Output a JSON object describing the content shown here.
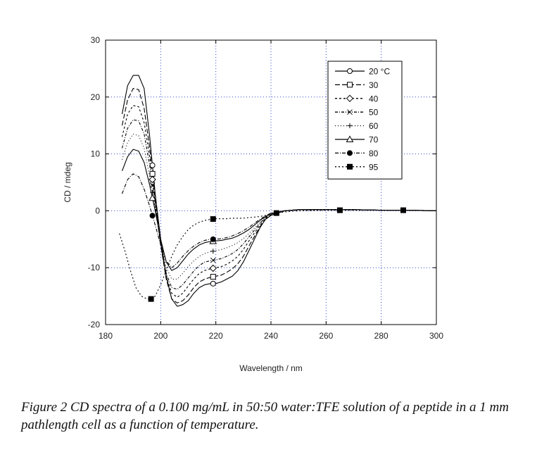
{
  "caption": "Figure 2 CD spectra of a 0.100 mg/mL in 50:50 water:TFE solution of a peptide in a 1 mm pathlength cell as a function of temperature.",
  "chart_data": {
    "type": "line",
    "title": "",
    "xlabel": "Wavelength / nm",
    "ylabel": "CD / mdeg",
    "xlim": [
      180,
      300
    ],
    "ylim": [
      -20,
      30
    ],
    "xticks": [
      180,
      200,
      220,
      240,
      260,
      280,
      300
    ],
    "yticks": [
      -20,
      -10,
      0,
      10,
      20,
      30
    ],
    "grid": true,
    "legend_position": "top-right",
    "series": [
      {
        "name": "20 °C",
        "dash": "",
        "marker": "circle-open",
        "marker_x": [
          197,
          219
        ],
        "x": [
          186,
          188,
          190,
          192,
          194,
          196,
          198,
          200,
          202,
          204,
          206,
          208,
          210,
          212,
          214,
          216,
          218,
          220,
          222,
          224,
          226,
          228,
          230,
          232,
          234,
          236,
          238,
          240,
          242,
          245,
          250,
          260,
          270,
          280,
          290,
          300
        ],
        "y": [
          17,
          22,
          23.8,
          23.8,
          21.5,
          13,
          3,
          -5,
          -11.5,
          -15.5,
          -16.8,
          -16.5,
          -15.8,
          -14.5,
          -13.5,
          -13,
          -12.8,
          -12.8,
          -12.5,
          -12,
          -11.5,
          -10.5,
          -9,
          -7,
          -5,
          -3,
          -1.5,
          -0.8,
          -0.5,
          0,
          0.2,
          0.2,
          0.2,
          0.1,
          0.1,
          0
        ]
      },
      {
        "name": "30",
        "dash": "7 3",
        "marker": "square-open",
        "marker_x": [
          197,
          219
        ],
        "x": [
          186,
          188,
          190,
          192,
          194,
          196,
          198,
          200,
          202,
          204,
          206,
          208,
          210,
          212,
          214,
          216,
          218,
          220,
          222,
          224,
          226,
          228,
          230,
          232,
          234,
          236,
          238,
          240,
          242,
          245,
          250,
          260,
          270,
          280,
          290,
          300
        ],
        "y": [
          15,
          19.5,
          21.5,
          21.3,
          18,
          11,
          2,
          -6,
          -12,
          -15.5,
          -16.2,
          -15.8,
          -14.8,
          -13.5,
          -12.5,
          -12,
          -11.7,
          -11.5,
          -11.3,
          -10.8,
          -10.2,
          -9.3,
          -8,
          -6.2,
          -4.5,
          -2.8,
          -1.5,
          -0.8,
          -0.5,
          0,
          0.2,
          0.2,
          0.2,
          0.1,
          0.1,
          0
        ]
      },
      {
        "name": "40",
        "dash": "3 3",
        "marker": "diamond-open",
        "marker_x": [
          197,
          219
        ],
        "x": [
          186,
          188,
          190,
          192,
          194,
          196,
          198,
          200,
          202,
          204,
          206,
          208,
          210,
          212,
          214,
          216,
          218,
          220,
          222,
          224,
          226,
          228,
          230,
          232,
          234,
          236,
          238,
          240,
          242,
          245,
          250,
          260,
          270,
          280,
          290,
          300
        ],
        "y": [
          13,
          17,
          18.5,
          18.3,
          15.5,
          9.5,
          1.5,
          -6,
          -11.5,
          -14.5,
          -15.2,
          -14.5,
          -13.2,
          -12,
          -11,
          -10.5,
          -10.2,
          -10,
          -9.8,
          -9.4,
          -8.8,
          -8,
          -6.8,
          -5.3,
          -3.9,
          -2.5,
          -1.3,
          -0.7,
          -0.4,
          0,
          0.2,
          0.2,
          0.2,
          0.1,
          0.1,
          0
        ]
      },
      {
        "name": "50",
        "dash": "4 2 1 2",
        "marker": "cross",
        "marker_x": [
          197,
          219
        ],
        "x": [
          186,
          188,
          190,
          192,
          194,
          196,
          198,
          200,
          202,
          204,
          206,
          208,
          210,
          212,
          214,
          216,
          218,
          220,
          222,
          224,
          226,
          228,
          230,
          232,
          234,
          236,
          238,
          240,
          242,
          245,
          250,
          260,
          270,
          280,
          290,
          300
        ],
        "y": [
          11,
          14.5,
          16,
          15.8,
          13.5,
          8,
          1,
          -6,
          -11,
          -13.5,
          -13.8,
          -13,
          -11.8,
          -10.6,
          -9.6,
          -9,
          -8.8,
          -8.6,
          -8.4,
          -8,
          -7.5,
          -6.8,
          -5.8,
          -4.6,
          -3.4,
          -2.2,
          -1.2,
          -0.6,
          -0.3,
          0,
          0.2,
          0.2,
          0.2,
          0.1,
          0.1,
          0
        ]
      },
      {
        "name": "60",
        "dash": "1 3",
        "marker": "plus",
        "marker_x": [
          197,
          219
        ],
        "x": [
          186,
          188,
          190,
          192,
          194,
          196,
          198,
          200,
          202,
          204,
          206,
          208,
          210,
          212,
          214,
          216,
          218,
          220,
          222,
          224,
          226,
          228,
          230,
          232,
          234,
          236,
          238,
          240,
          242,
          245,
          250,
          260,
          270,
          280,
          290,
          300
        ],
        "y": [
          9,
          12,
          13.5,
          13.2,
          11,
          6,
          0.5,
          -5.5,
          -10,
          -12,
          -12,
          -11,
          -9.8,
          -8.8,
          -8,
          -7.5,
          -7.2,
          -7,
          -6.8,
          -6.5,
          -6.1,
          -5.6,
          -4.9,
          -4,
          -3,
          -2,
          -1.1,
          -0.5,
          -0.3,
          0,
          0.2,
          0.2,
          0.2,
          0.1,
          0.1,
          0
        ]
      },
      {
        "name": "70",
        "dash": "",
        "marker": "triangle-open",
        "marker_x": [
          197,
          219
        ],
        "x": [
          186,
          188,
          190,
          192,
          194,
          196,
          198,
          200,
          202,
          204,
          206,
          208,
          210,
          212,
          214,
          216,
          218,
          220,
          222,
          224,
          226,
          228,
          230,
          232,
          234,
          236,
          238,
          240,
          242,
          245,
          250,
          260,
          270,
          280,
          290,
          300
        ],
        "y": [
          7,
          9.5,
          10.8,
          10.5,
          8.5,
          4.5,
          0,
          -5,
          -9,
          -10.5,
          -10,
          -8.8,
          -7.6,
          -6.7,
          -6,
          -5.6,
          -5.4,
          -5.3,
          -5.2,
          -5,
          -4.8,
          -4.4,
          -3.9,
          -3.3,
          -2.5,
          -1.7,
          -1,
          -0.5,
          -0.3,
          0,
          0.2,
          0.2,
          0.2,
          0.1,
          0.1,
          0
        ]
      },
      {
        "name": "80",
        "dash": "5 2 1 2",
        "marker": "circle-filled",
        "marker_x": [
          197,
          219
        ],
        "x": [
          186,
          188,
          190,
          192,
          194,
          196,
          198,
          200,
          202,
          204,
          206,
          208,
          210,
          212,
          214,
          216,
          218,
          220,
          222,
          224,
          226,
          228,
          230,
          232,
          234,
          236,
          238,
          240,
          242,
          245,
          250,
          260,
          270,
          280,
          290,
          300
        ],
        "y": [
          3,
          5.5,
          6.5,
          6,
          3.8,
          0.8,
          -2.5,
          -6,
          -8.8,
          -10,
          -9.2,
          -8,
          -7,
          -6.2,
          -5.6,
          -5.2,
          -5,
          -5,
          -4.9,
          -4.7,
          -4.4,
          -4,
          -3.5,
          -2.9,
          -2.2,
          -1.5,
          -0.9,
          -0.4,
          -0.2,
          0,
          0.2,
          0.2,
          0.2,
          0.1,
          0.1,
          0
        ]
      },
      {
        "name": "95",
        "dash": "2 3",
        "marker": "square-filled",
        "marker_x": [
          196.5,
          219,
          242,
          265,
          288
        ],
        "x": [
          185,
          187,
          189,
          191,
          193,
          195,
          196.5,
          198,
          200,
          202,
          204,
          206,
          208,
          210,
          212,
          214,
          216,
          218,
          220,
          222,
          224,
          226,
          228,
          230,
          232,
          234,
          236,
          238,
          240,
          242,
          245,
          250,
          260,
          265,
          270,
          280,
          288,
          300
        ],
        "y": [
          -4,
          -7,
          -10.5,
          -13.5,
          -15,
          -15.5,
          -15.5,
          -15,
          -13,
          -10.5,
          -8,
          -6,
          -4.5,
          -3.3,
          -2.5,
          -2,
          -1.7,
          -1.5,
          -1.4,
          -1.4,
          -1.4,
          -1.3,
          -1.3,
          -1.3,
          -1.2,
          -1.1,
          -1,
          -0.8,
          -0.6,
          -0.4,
          -0.2,
          0,
          0.1,
          0.1,
          0.1,
          0.1,
          0.1,
          0
        ]
      }
    ]
  }
}
